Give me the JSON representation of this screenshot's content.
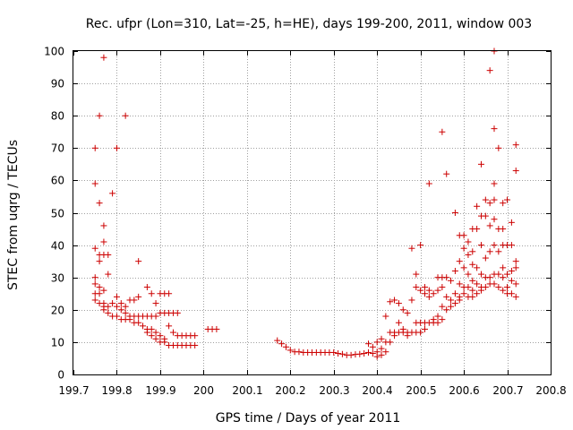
{
  "chart_data": {
    "type": "scatter",
    "title": "Rec. ufpr (Lon=310, Lat=-25, h=HE), days 199-200, 2011, window 003",
    "xlabel": "GPS time / Days of year 2011",
    "ylabel": "STEC from uqrg / TECUs",
    "xlim": [
      199.7,
      200.8
    ],
    "ylim": [
      0,
      100
    ],
    "xticks": [
      "199.7",
      "199.8",
      "199.9",
      "200",
      "200.1",
      "200.2",
      "200.3",
      "200.4",
      "200.5",
      "200.6",
      "200.7",
      "200.8"
    ],
    "yticks": [
      "0",
      "10",
      "20",
      "30",
      "40",
      "50",
      "60",
      "70",
      "80",
      "90",
      "100"
    ],
    "grid": true,
    "marker": "+",
    "color": "#cc0000",
    "series": [
      {
        "name": "STEC",
        "points": [
          [
            199.75,
            70
          ],
          [
            199.75,
            59
          ],
          [
            199.75,
            39
          ],
          [
            199.75,
            30
          ],
          [
            199.75,
            28
          ],
          [
            199.75,
            25
          ],
          [
            199.75,
            23
          ],
          [
            199.76,
            80
          ],
          [
            199.76,
            53
          ],
          [
            199.76,
            37
          ],
          [
            199.76,
            35
          ],
          [
            199.76,
            27
          ],
          [
            199.76,
            25
          ],
          [
            199.76,
            22
          ],
          [
            199.77,
            98
          ],
          [
            199.77,
            46
          ],
          [
            199.77,
            41
          ],
          [
            199.77,
            37
          ],
          [
            199.77,
            26
          ],
          [
            199.77,
            22
          ],
          [
            199.77,
            21
          ],
          [
            199.77,
            20
          ],
          [
            199.78,
            37
          ],
          [
            199.78,
            31
          ],
          [
            199.78,
            21
          ],
          [
            199.78,
            19
          ],
          [
            199.79,
            56
          ],
          [
            199.79,
            22
          ],
          [
            199.79,
            18
          ],
          [
            199.8,
            70
          ],
          [
            199.8,
            24
          ],
          [
            199.8,
            21
          ],
          [
            199.8,
            18
          ],
          [
            199.81,
            22
          ],
          [
            199.81,
            20
          ],
          [
            199.81,
            17
          ],
          [
            199.82,
            80
          ],
          [
            199.82,
            21
          ],
          [
            199.82,
            19
          ],
          [
            199.82,
            17
          ],
          [
            199.83,
            23
          ],
          [
            199.83,
            18
          ],
          [
            199.83,
            17
          ],
          [
            199.84,
            23
          ],
          [
            199.84,
            18
          ],
          [
            199.84,
            16
          ],
          [
            199.85,
            35
          ],
          [
            199.85,
            24
          ],
          [
            199.85,
            18
          ],
          [
            199.85,
            16
          ],
          [
            199.86,
            18
          ],
          [
            199.86,
            15
          ],
          [
            199.87,
            27
          ],
          [
            199.87,
            18
          ],
          [
            199.87,
            14
          ],
          [
            199.87,
            13
          ],
          [
            199.88,
            25
          ],
          [
            199.88,
            18
          ],
          [
            199.88,
            14
          ],
          [
            199.88,
            12
          ],
          [
            199.89,
            22
          ],
          [
            199.89,
            18
          ],
          [
            199.89,
            13
          ],
          [
            199.89,
            11
          ],
          [
            199.9,
            25
          ],
          [
            199.9,
            19
          ],
          [
            199.9,
            12
          ],
          [
            199.9,
            10
          ],
          [
            199.91,
            25
          ],
          [
            199.91,
            19
          ],
          [
            199.91,
            11
          ],
          [
            199.91,
            10
          ],
          [
            199.92,
            25
          ],
          [
            199.92,
            19
          ],
          [
            199.92,
            15
          ],
          [
            199.92,
            9
          ],
          [
            199.93,
            19
          ],
          [
            199.93,
            13
          ],
          [
            199.93,
            9
          ],
          [
            199.94,
            19
          ],
          [
            199.94,
            12
          ],
          [
            199.94,
            9
          ],
          [
            199.95,
            12
          ],
          [
            199.95,
            9
          ],
          [
            199.96,
            12
          ],
          [
            199.96,
            9
          ],
          [
            199.97,
            12
          ],
          [
            199.97,
            9
          ],
          [
            199.98,
            12
          ],
          [
            199.98,
            9
          ],
          [
            200.01,
            14
          ],
          [
            200.02,
            14
          ],
          [
            200.03,
            14
          ],
          [
            200.17,
            10.5
          ],
          [
            200.18,
            9.5
          ],
          [
            200.19,
            8.5
          ],
          [
            200.2,
            7.5
          ],
          [
            200.21,
            7
          ],
          [
            200.22,
            7
          ],
          [
            200.23,
            6.8
          ],
          [
            200.24,
            6.8
          ],
          [
            200.25,
            6.8
          ],
          [
            200.26,
            6.8
          ],
          [
            200.27,
            6.8
          ],
          [
            200.28,
            6.8
          ],
          [
            200.29,
            6.8
          ],
          [
            200.3,
            6.8
          ],
          [
            200.31,
            6.5
          ],
          [
            200.32,
            6.3
          ],
          [
            200.33,
            6
          ],
          [
            200.34,
            6
          ],
          [
            200.35,
            6.2
          ],
          [
            200.36,
            6.3
          ],
          [
            200.37,
            6.5
          ],
          [
            200.38,
            9.5
          ],
          [
            200.38,
            6.8
          ],
          [
            200.39,
            8.5
          ],
          [
            200.39,
            6.5
          ],
          [
            200.4,
            10
          ],
          [
            200.4,
            7
          ],
          [
            200.4,
            5.5
          ],
          [
            200.41,
            11
          ],
          [
            200.41,
            8
          ],
          [
            200.41,
            6
          ],
          [
            200.42,
            18
          ],
          [
            200.42,
            10
          ],
          [
            200.42,
            7
          ],
          [
            200.43,
            22.5
          ],
          [
            200.43,
            13
          ],
          [
            200.43,
            10
          ],
          [
            200.44,
            23
          ],
          [
            200.44,
            13
          ],
          [
            200.44,
            12
          ],
          [
            200.45,
            22
          ],
          [
            200.45,
            16
          ],
          [
            200.45,
            13
          ],
          [
            200.46,
            20
          ],
          [
            200.46,
            14
          ],
          [
            200.46,
            13
          ],
          [
            200.47,
            19
          ],
          [
            200.47,
            13
          ],
          [
            200.47,
            12
          ],
          [
            200.48,
            39
          ],
          [
            200.48,
            23
          ],
          [
            200.48,
            13
          ],
          [
            200.49,
            31
          ],
          [
            200.49,
            27
          ],
          [
            200.49,
            16
          ],
          [
            200.49,
            13
          ],
          [
            200.5,
            40
          ],
          [
            200.5,
            26
          ],
          [
            200.5,
            16
          ],
          [
            200.5,
            13
          ],
          [
            200.51,
            27
          ],
          [
            200.51,
            25
          ],
          [
            200.51,
            16
          ],
          [
            200.51,
            14
          ],
          [
            200.52,
            59
          ],
          [
            200.52,
            26
          ],
          [
            200.52,
            24
          ],
          [
            200.52,
            16
          ],
          [
            200.53,
            25
          ],
          [
            200.53,
            17
          ],
          [
            200.53,
            16
          ],
          [
            200.54,
            30
          ],
          [
            200.54,
            26
          ],
          [
            200.54,
            18
          ],
          [
            200.54,
            16
          ],
          [
            200.55,
            75
          ],
          [
            200.55,
            30
          ],
          [
            200.55,
            27
          ],
          [
            200.55,
            21
          ],
          [
            200.55,
            17
          ],
          [
            200.56,
            62
          ],
          [
            200.56,
            30
          ],
          [
            200.56,
            24
          ],
          [
            200.56,
            20
          ],
          [
            200.57,
            29
          ],
          [
            200.57,
            23
          ],
          [
            200.57,
            21
          ],
          [
            200.58,
            50
          ],
          [
            200.58,
            32
          ],
          [
            200.58,
            25
          ],
          [
            200.58,
            22
          ],
          [
            200.59,
            43
          ],
          [
            200.59,
            35
          ],
          [
            200.59,
            28
          ],
          [
            200.59,
            24
          ],
          [
            200.59,
            23
          ],
          [
            200.6,
            43
          ],
          [
            200.6,
            39
          ],
          [
            200.6,
            33
          ],
          [
            200.6,
            27
          ],
          [
            200.6,
            25
          ],
          [
            200.61,
            41
          ],
          [
            200.61,
            37
          ],
          [
            200.61,
            31
          ],
          [
            200.61,
            27
          ],
          [
            200.61,
            24
          ],
          [
            200.62,
            45
          ],
          [
            200.62,
            38
          ],
          [
            200.62,
            34
          ],
          [
            200.62,
            29
          ],
          [
            200.62,
            26
          ],
          [
            200.62,
            24
          ],
          [
            200.63,
            52
          ],
          [
            200.63,
            45
          ],
          [
            200.63,
            33
          ],
          [
            200.63,
            28
          ],
          [
            200.63,
            25
          ],
          [
            200.64,
            65
          ],
          [
            200.64,
            49
          ],
          [
            200.64,
            40
          ],
          [
            200.64,
            31
          ],
          [
            200.64,
            27
          ],
          [
            200.64,
            26
          ],
          [
            200.65,
            54
          ],
          [
            200.65,
            49
          ],
          [
            200.65,
            36
          ],
          [
            200.65,
            30
          ],
          [
            200.65,
            27
          ],
          [
            200.66,
            94
          ],
          [
            200.66,
            53
          ],
          [
            200.66,
            46
          ],
          [
            200.66,
            38
          ],
          [
            200.66,
            30
          ],
          [
            200.66,
            28
          ],
          [
            200.67,
            100
          ],
          [
            200.67,
            76
          ],
          [
            200.67,
            59
          ],
          [
            200.67,
            54
          ],
          [
            200.67,
            48
          ],
          [
            200.67,
            40
          ],
          [
            200.67,
            31
          ],
          [
            200.67,
            28
          ],
          [
            200.68,
            70
          ],
          [
            200.68,
            45
          ],
          [
            200.68,
            38
          ],
          [
            200.68,
            31
          ],
          [
            200.68,
            27
          ],
          [
            200.69,
            53
          ],
          [
            200.69,
            45
          ],
          [
            200.69,
            40
          ],
          [
            200.69,
            33
          ],
          [
            200.69,
            30
          ],
          [
            200.69,
            26
          ],
          [
            200.7,
            54
          ],
          [
            200.7,
            40
          ],
          [
            200.7,
            31
          ],
          [
            200.7,
            27
          ],
          [
            200.7,
            25
          ],
          [
            200.71,
            47
          ],
          [
            200.71,
            40
          ],
          [
            200.71,
            32
          ],
          [
            200.71,
            29
          ],
          [
            200.71,
            25
          ],
          [
            200.72,
            71
          ],
          [
            200.72,
            63
          ],
          [
            200.72,
            35
          ],
          [
            200.72,
            33
          ],
          [
            200.72,
            28
          ],
          [
            200.72,
            24
          ]
        ]
      }
    ]
  }
}
